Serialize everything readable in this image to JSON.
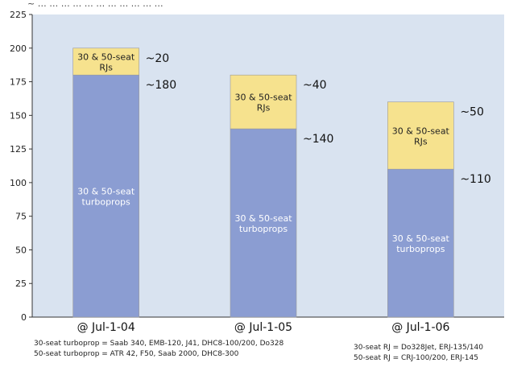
{
  "chart_data": {
    "type": "bar",
    "stacked": true,
    "title": "~ … … … … … … … … … … …",
    "categories": [
      "@ Jul-1-04",
      "@ Jul-1-05",
      "@ Jul-1-06"
    ],
    "series": [
      {
        "name": "30 & 50-seat turboprops",
        "values": [
          180,
          140,
          110
        ],
        "labels": [
          "~180",
          "~140",
          "~110"
        ],
        "color": "#8b9dd2"
      },
      {
        "name": "30 & 50-seat RJs",
        "values": [
          20,
          40,
          50
        ],
        "labels": [
          "~20",
          "~40",
          "~50"
        ],
        "color": "#f6e28e"
      }
    ],
    "segment_text": {
      "turboprops": [
        "30 & 50-seat",
        "turboprops"
      ],
      "rjs": [
        "30 & 50-seat",
        "RJs"
      ]
    },
    "ylim": [
      0,
      225
    ],
    "yticks": [
      0,
      25,
      50,
      75,
      100,
      125,
      150,
      175,
      200,
      225
    ],
    "grid": false,
    "plot_background": "#d9e3f0"
  },
  "footnotes": {
    "left": [
      "30-seat turboprop = Saab 340, EMB-120, J41, DHC8-100/200, Do328",
      "50-seat turboprop = ATR 42, F50, Saab 2000, DHC8-300"
    ],
    "right": [
      "30-seat RJ = Do328Jet, ERJ-135/140",
      "50-seat RJ = CRJ-100/200, ERJ-145"
    ]
  }
}
